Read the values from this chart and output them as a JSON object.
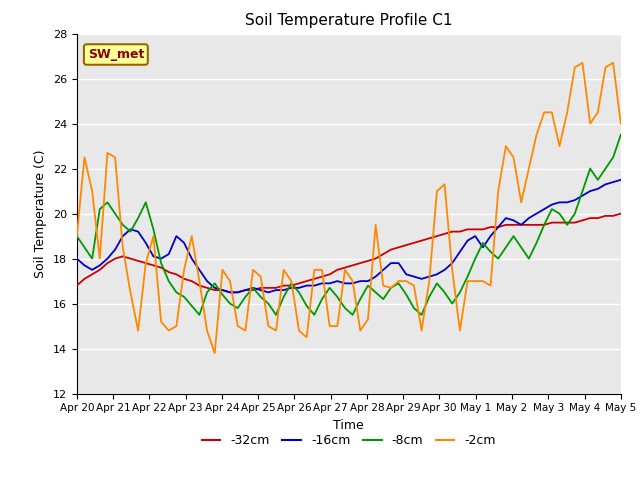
{
  "title": "Soil Temperature Profile C1",
  "xlabel": "Time",
  "ylabel": "Soil Temperature (C)",
  "ylim": [
    12,
    28
  ],
  "yticks": [
    12,
    14,
    16,
    18,
    20,
    22,
    24,
    26,
    28
  ],
  "background_color": "#e8e8e8",
  "annotation_text": "SW_met",
  "annotation_color": "#8b0000",
  "annotation_bg": "#ffff99",
  "annotation_border": "#996600",
  "legend_entries": [
    "-32cm",
    "-16cm",
    "-8cm",
    "-2cm"
  ],
  "legend_colors": [
    "#cc0000",
    "#0000cc",
    "#009900",
    "#ff8800"
  ],
  "x_labels": [
    "Apr 20",
    "Apr 21",
    "Apr 22",
    "Apr 23",
    "Apr 24",
    "Apr 25",
    "Apr 26",
    "Apr 27",
    "Apr 28",
    "Apr 29",
    "Apr 30",
    "May 1",
    "May 2",
    "May 3",
    "May 4",
    "May 5"
  ],
  "series_32cm": [
    16.8,
    17.1,
    17.3,
    17.5,
    17.8,
    18.0,
    18.1,
    18.0,
    17.9,
    17.8,
    17.7,
    17.6,
    17.4,
    17.3,
    17.1,
    17.0,
    16.8,
    16.7,
    16.6,
    16.6,
    16.5,
    16.5,
    16.6,
    16.6,
    16.7,
    16.7,
    16.7,
    16.8,
    16.8,
    16.9,
    17.0,
    17.1,
    17.2,
    17.3,
    17.5,
    17.6,
    17.7,
    17.8,
    17.9,
    18.0,
    18.2,
    18.4,
    18.5,
    18.6,
    18.7,
    18.8,
    18.9,
    19.0,
    19.1,
    19.2,
    19.2,
    19.3,
    19.3,
    19.3,
    19.4,
    19.4,
    19.5,
    19.5,
    19.5,
    19.5,
    19.5,
    19.5,
    19.6,
    19.6,
    19.6,
    19.6,
    19.7,
    19.8,
    19.8,
    19.9,
    19.9,
    20.0
  ],
  "series_16cm": [
    18.0,
    17.7,
    17.5,
    17.7,
    18.0,
    18.4,
    19.0,
    19.3,
    19.2,
    18.7,
    18.1,
    18.0,
    18.2,
    19.0,
    18.7,
    18.0,
    17.5,
    17.0,
    16.7,
    16.6,
    16.5,
    16.5,
    16.6,
    16.7,
    16.6,
    16.5,
    16.6,
    16.6,
    16.7,
    16.7,
    16.8,
    16.8,
    16.9,
    16.9,
    17.0,
    16.9,
    16.9,
    17.0,
    17.0,
    17.2,
    17.5,
    17.8,
    17.8,
    17.3,
    17.2,
    17.1,
    17.2,
    17.3,
    17.5,
    17.8,
    18.3,
    18.8,
    19.0,
    18.5,
    19.0,
    19.4,
    19.8,
    19.7,
    19.5,
    19.8,
    20.0,
    20.2,
    20.4,
    20.5,
    20.5,
    20.6,
    20.8,
    21.0,
    21.1,
    21.3,
    21.4,
    21.5
  ],
  "series_8cm": [
    19.0,
    18.5,
    18.0,
    20.2,
    20.5,
    20.0,
    19.5,
    19.2,
    19.8,
    20.5,
    19.3,
    17.8,
    17.0,
    16.5,
    16.3,
    15.9,
    15.5,
    16.5,
    16.9,
    16.4,
    16.0,
    15.8,
    16.3,
    16.7,
    16.3,
    16.0,
    15.5,
    16.3,
    16.9,
    16.5,
    15.9,
    15.5,
    16.2,
    16.7,
    16.3,
    15.8,
    15.5,
    16.2,
    16.8,
    16.5,
    16.2,
    16.7,
    16.9,
    16.4,
    15.8,
    15.5,
    16.3,
    16.9,
    16.5,
    16.0,
    16.5,
    17.2,
    18.0,
    18.7,
    18.3,
    18.0,
    18.5,
    19.0,
    18.5,
    18.0,
    18.7,
    19.5,
    20.2,
    20.0,
    19.5,
    20.0,
    21.0,
    22.0,
    21.5,
    22.0,
    22.5,
    23.5
  ],
  "series_2cm": [
    19.0,
    22.5,
    21.0,
    18.0,
    22.7,
    22.5,
    18.5,
    16.5,
    14.8,
    17.8,
    19.0,
    15.2,
    14.8,
    15.0,
    17.5,
    19.0,
    17.0,
    14.8,
    13.8,
    17.5,
    17.0,
    15.0,
    14.8,
    17.5,
    17.2,
    15.0,
    14.8,
    17.5,
    17.0,
    14.8,
    14.5,
    17.5,
    17.5,
    15.0,
    15.0,
    17.5,
    17.0,
    14.8,
    15.3,
    19.5,
    16.8,
    16.7,
    17.0,
    17.0,
    16.8,
    14.8,
    17.0,
    21.0,
    21.3,
    17.5,
    14.8,
    17.0,
    17.0,
    17.0,
    16.8,
    21.0,
    23.0,
    22.5,
    20.5,
    22.0,
    23.5,
    24.5,
    24.5,
    23.0,
    24.5,
    26.5,
    26.7,
    24.0,
    24.5,
    26.5,
    26.7,
    24.0
  ]
}
